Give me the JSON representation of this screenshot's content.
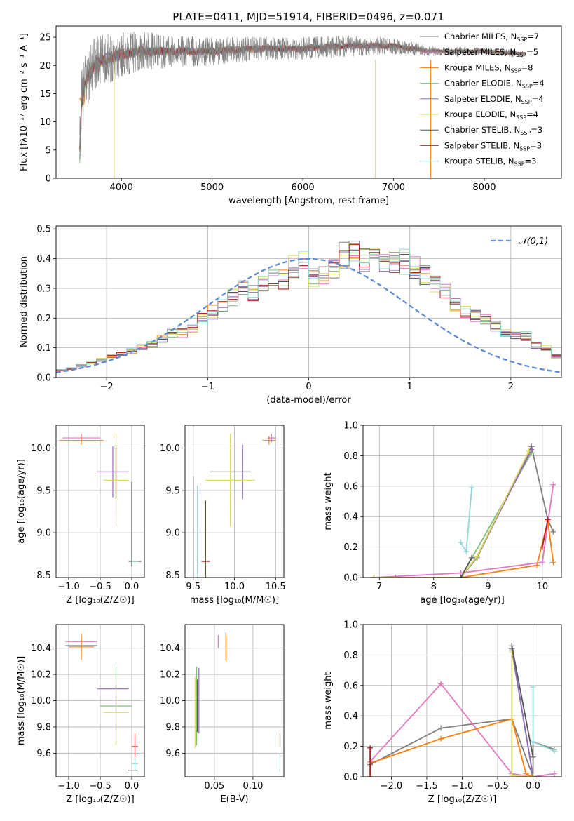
{
  "title": "PLATE=0411, MJD=51914, FIBERID=0496, z=0.071",
  "colors": [
    "#7f7f7f",
    "#e377c2",
    "#ff7f0e",
    "#7fbf7f",
    "#9467bd",
    "#dbdb5c",
    "#555555",
    "#b22222",
    "#8fd8d8"
  ],
  "chart_data": [
    {
      "id": "spectrum",
      "type": "line",
      "xlabel": "wavelength [Angstrom, rest frame]",
      "ylabel": "Flux [fλ10⁻¹⁷ erg cm⁻² s⁻¹ A⁻¹]",
      "xlim": [
        3280,
        8850
      ],
      "ylim": [
        0,
        27
      ],
      "xticks": [
        4000,
        5000,
        6000,
        7000,
        8000
      ],
      "yticks": [
        0,
        5,
        10,
        15,
        20,
        25
      ],
      "grid": false,
      "legend_position": "top-right",
      "series": [
        {
          "name": "Chabrier MILES, NSSP=7",
          "label": "Chabrier MILES, N",
          "sub": "SSP",
          "suffix": "=7"
        },
        {
          "name": "Salpeter MILES, NSSP=5",
          "label": "Salpeter MILES, N",
          "sub": "SSP",
          "suffix": "=5"
        },
        {
          "name": "Kroupa MILES, NSSP=8",
          "label": "Kroupa MILES, N",
          "sub": "SSP",
          "suffix": "=8"
        },
        {
          "name": "Chabrier ELODIE, NSSP=4",
          "label": "Chabrier ELODIE, N",
          "sub": "SSP",
          "suffix": "=4"
        },
        {
          "name": "Salpeter ELODIE, NSSP=4",
          "label": "Salpeter ELODIE, N",
          "sub": "SSP",
          "suffix": "=4"
        },
        {
          "name": "Kroupa ELODIE, NSSP=4",
          "label": "Kroupa ELODIE, N",
          "sub": "SSP",
          "suffix": "=4"
        },
        {
          "name": "Chabrier STELIB, NSSP=3",
          "label": "Chabrier STELIB, N",
          "sub": "SSP",
          "suffix": "=3"
        },
        {
          "name": "Salpeter STELIB, NSSP=3",
          "label": "Salpeter STELIB, N",
          "sub": "SSP",
          "suffix": "=3"
        },
        {
          "name": "Kroupa STELIB, NSSP=3",
          "label": "Kroupa STELIB, N",
          "sub": "SSP",
          "suffix": "=3"
        }
      ],
      "observed_spectrum": {
        "x_range": [
          3540,
          8460
        ],
        "envelope": [
          [
            3540,
            4
          ],
          [
            3560,
            13
          ],
          [
            3600,
            17
          ],
          [
            3700,
            20
          ],
          [
            3800,
            21
          ],
          [
            3900,
            21.5
          ],
          [
            4000,
            22
          ],
          [
            4200,
            22.5
          ],
          [
            4500,
            22.5
          ],
          [
            4800,
            22.5
          ],
          [
            5000,
            22.5
          ],
          [
            5500,
            23
          ],
          [
            6000,
            23
          ],
          [
            6500,
            23.5
          ],
          [
            7000,
            23.5
          ],
          [
            7400,
            22.5
          ],
          [
            7600,
            22.5
          ],
          [
            8000,
            22.5
          ],
          [
            8460,
            22
          ]
        ],
        "noise": [
          [
            3540,
            6
          ],
          [
            3700,
            5
          ],
          [
            4000,
            4
          ],
          [
            4500,
            3
          ],
          [
            5000,
            2.5
          ],
          [
            5800,
            2
          ],
          [
            6500,
            2
          ],
          [
            7000,
            1.5
          ],
          [
            7500,
            0.8
          ],
          [
            8460,
            0.6
          ]
        ]
      },
      "model_dips": [
        {
          "x": 3920,
          "y": 0,
          "series": 5
        },
        {
          "x": 6800,
          "y": 0,
          "series": 5
        },
        {
          "x": 7410,
          "y": 0,
          "series": 2
        }
      ]
    },
    {
      "id": "residuals",
      "type": "step",
      "xlabel": "(data-model)/error",
      "ylabel": "Normed distribution",
      "xlim": [
        -2.5,
        2.5
      ],
      "ylim": [
        0,
        0.51
      ],
      "xticks": [
        -2,
        -1,
        0,
        1,
        2
      ],
      "yticks": [
        0.0,
        0.1,
        0.2,
        0.3,
        0.4,
        0.5
      ],
      "grid": true,
      "legend_position": "top-right",
      "gaussian_label": "𝒩(0,1)",
      "bin_width": 0.1,
      "bin_start": -2.5,
      "base_values": [
        0.025,
        0.03,
        0.04,
        0.05,
        0.06,
        0.07,
        0.08,
        0.09,
        0.1,
        0.11,
        0.13,
        0.15,
        0.15,
        0.16,
        0.2,
        0.22,
        0.24,
        0.27,
        0.3,
        0.28,
        0.32,
        0.34,
        0.33,
        0.37,
        0.39,
        0.34,
        0.34,
        0.37,
        0.41,
        0.43,
        0.4,
        0.41,
        0.39,
        0.38,
        0.39,
        0.37,
        0.34,
        0.31,
        0.29,
        0.25,
        0.22,
        0.21,
        0.2,
        0.17,
        0.15,
        0.14,
        0.14,
        0.11,
        0.1,
        0.07,
        0.065,
        0.06,
        0.05,
        0.045,
        0.04,
        0.04,
        0.035
      ]
    },
    {
      "id": "age-vs-Z",
      "type": "errorbar",
      "xlabel": "Z [log₁₀(Z/Z☉)]",
      "ylabel": "age  [log₁₀(age/yr)]",
      "xlim": [
        -1.2,
        0.2
      ],
      "ylim": [
        8.47,
        10.27
      ],
      "xticks": [
        -1.0,
        -0.5,
        0.0
      ],
      "yticks": [
        8.5,
        9.0,
        9.5,
        10.0
      ],
      "grid": true,
      "points": [
        {
          "s": 0,
          "x": 0.05,
          "y": 8.66,
          "xe": 0.1,
          "ye": 0.0
        },
        {
          "s": 1,
          "x": -0.8,
          "y": 10.12,
          "xe": 0.3,
          "ye": 0.05
        },
        {
          "s": 2,
          "x": -0.8,
          "y": 10.09,
          "xe": 0.35,
          "ye": 0.05
        },
        {
          "s": 3,
          "x": -0.25,
          "y": 9.62,
          "xe": 0.0,
          "ye": 0.4
        },
        {
          "s": 4,
          "x": -0.3,
          "y": 9.72,
          "xe": 0.25,
          "ye": 0.3
        },
        {
          "s": 5,
          "x": -0.25,
          "y": 9.62,
          "xe": 0.2,
          "ye": 0.55
        },
        {
          "s": 6,
          "x": 0.0,
          "y": 9.1,
          "xe": 0.0,
          "ye": 0.5
        },
        {
          "s": 7,
          "x": -0.25,
          "y": 9.72,
          "xe": 0.0,
          "ye": 0.32
        },
        {
          "s": 8,
          "x": 0.05,
          "y": 8.66,
          "xe": 0.05,
          "ye": 0.0
        }
      ]
    },
    {
      "id": "age-vs-mass",
      "type": "errorbar",
      "xlabel": "mass [log₁₀(M/M☉)]",
      "ylabel": "",
      "xlim": [
        9.4,
        10.6
      ],
      "ylim": [
        8.47,
        10.27
      ],
      "xticks": [
        9.5,
        10.0,
        10.5
      ],
      "yticks": [
        8.5,
        9.0,
        9.5,
        10.0
      ],
      "grid": true,
      "points": [
        {
          "s": 0,
          "x": 9.95,
          "y": 9.72,
          "xe": 0.25,
          "ye": 0.32
        },
        {
          "s": 1,
          "x": 10.45,
          "y": 10.12,
          "xe": 0.05,
          "ye": 0.05
        },
        {
          "s": 2,
          "x": 10.42,
          "y": 10.09,
          "xe": 0.08,
          "ye": 0.05
        },
        {
          "s": 3,
          "x": 9.95,
          "y": 9.72,
          "xe": 0.0,
          "ye": 0.3
        },
        {
          "s": 4,
          "x": 10.1,
          "y": 9.72,
          "xe": 0.0,
          "ye": 0.32
        },
        {
          "s": 5,
          "x": 9.95,
          "y": 9.62,
          "xe": 0.3,
          "ye": 0.55
        },
        {
          "s": 6,
          "x": 9.5,
          "y": 8.66,
          "xe": 0.0,
          "ye": 1.0
        },
        {
          "s": 7,
          "x": 9.65,
          "y": 8.66,
          "xe": 0.05,
          "ye": 0.72
        },
        {
          "s": 8,
          "x": 9.55,
          "y": 8.66,
          "xe": 0.0,
          "ye": 0.9
        }
      ]
    },
    {
      "id": "massweight-vs-age",
      "type": "line",
      "xlabel": "age  [log₁₀(age/yr)]",
      "ylabel": "mass weight",
      "xlim": [
        6.7,
        10.35
      ],
      "ylim": [
        0,
        1
      ],
      "xticks": [
        7,
        8,
        9,
        10
      ],
      "yticks": [
        0.0,
        0.2,
        0.4,
        0.6,
        0.8,
        1.0
      ],
      "grid": true,
      "series": [
        {
          "s": 0,
          "x": [
            6.9,
            7.3,
            8.5,
            8.8,
            9.8,
            10.1,
            10.2
          ],
          "y": [
            0.0,
            0.0,
            0.0,
            0.13,
            0.86,
            0.38,
            0.3
          ]
        },
        {
          "s": 1,
          "x": [
            6.9,
            8.5,
            10.0,
            10.2
          ],
          "y": [
            0.0,
            0.03,
            0.1,
            0.61
          ]
        },
        {
          "s": 2,
          "x": [
            6.9,
            8.5,
            9.9,
            10.1,
            10.2
          ],
          "y": [
            0.0,
            0.0,
            0.08,
            0.37,
            0.1
          ]
        },
        {
          "s": 3,
          "x": [
            6.9,
            8.5,
            9.8
          ],
          "y": [
            0.0,
            0.0,
            0.82
          ]
        },
        {
          "s": 4,
          "x": [
            6.9,
            8.5,
            8.8,
            9.8
          ],
          "y": [
            0.0,
            0.0,
            0.14,
            0.84
          ]
        },
        {
          "s": 5,
          "x": [
            6.9,
            8.5,
            8.8,
            9.75
          ],
          "y": [
            0.0,
            0.0,
            0.14,
            0.83
          ]
        },
        {
          "s": 6,
          "x": [
            8.5,
            8.7
          ],
          "y": [
            0.0,
            0.13
          ]
        },
        {
          "s": 7,
          "x": [
            10.0,
            10.1
          ],
          "y": [
            0.2,
            0.38
          ]
        },
        {
          "s": 8,
          "x": [
            8.5,
            8.6,
            8.7
          ],
          "y": [
            0.23,
            0.17,
            0.59
          ]
        }
      ]
    },
    {
      "id": "mass-vs-Z",
      "type": "errorbar",
      "xlabel": "Z [log₁₀(Z/Z☉)]",
      "ylabel": "mass [log₁₀(M/M☉)]",
      "xlim": [
        -1.2,
        0.2
      ],
      "ylim": [
        9.42,
        10.58
      ],
      "xticks": [
        -1.0,
        -0.5,
        0.0
      ],
      "yticks": [
        9.6,
        9.8,
        10.0,
        10.2,
        10.4
      ],
      "grid": true,
      "points": [
        {
          "s": 0,
          "x": -0.8,
          "y": 10.42,
          "xe": 0.25,
          "ye": 0.05
        },
        {
          "s": 1,
          "x": -0.8,
          "y": 10.45,
          "xe": 0.25,
          "ye": 0.05
        },
        {
          "s": 2,
          "x": -0.8,
          "y": 10.41,
          "xe": 0.2,
          "ye": 0.1
        },
        {
          "s": 3,
          "x": -0.25,
          "y": 9.96,
          "xe": 0.25,
          "ye": 0.3
        },
        {
          "s": 4,
          "x": -0.3,
          "y": 10.09,
          "xe": 0.25,
          "ye": 0.0
        },
        {
          "s": 5,
          "x": -0.25,
          "y": 9.91,
          "xe": 0.2,
          "ye": 0.25
        },
        {
          "s": 6,
          "x": 0.02,
          "y": 9.47,
          "xe": 0.08,
          "ye": 0.0
        },
        {
          "s": 7,
          "x": 0.05,
          "y": 9.65,
          "xe": 0.05,
          "ye": 0.1
        },
        {
          "s": 8,
          "x": 0.05,
          "y": 9.52,
          "xe": 0.05,
          "ye": 0.05
        }
      ]
    },
    {
      "id": "mass-vs-EBV",
      "type": "errorbar",
      "xlabel": "E(B-V)",
      "ylabel": "",
      "xlim": [
        0.012,
        0.14
      ],
      "ylim": [
        9.42,
        10.58
      ],
      "xticks": [
        0.05,
        0.1
      ],
      "yticks": [
        9.6,
        9.8,
        10.0,
        10.2,
        10.4
      ],
      "grid": true,
      "points": [
        {
          "s": 0,
          "x": 0.065,
          "y": 10.42,
          "xe": 0.0,
          "ye": 0.1
        },
        {
          "s": 1,
          "x": 0.055,
          "y": 10.45,
          "xe": 0.0,
          "ye": 0.05
        },
        {
          "s": 2,
          "x": 0.065,
          "y": 10.4,
          "xe": 0.0,
          "ye": 0.1
        },
        {
          "s": 3,
          "x": 0.027,
          "y": 9.96,
          "xe": 0.0,
          "ye": 0.3
        },
        {
          "s": 4,
          "x": 0.03,
          "y": 10.0,
          "xe": 0.0,
          "ye": 0.25
        },
        {
          "s": 5,
          "x": 0.025,
          "y": 9.91,
          "xe": 0.0,
          "ye": 0.27
        },
        {
          "s": 6,
          "x": 0.028,
          "y": 9.96,
          "xe": 0.0,
          "ye": 0.2
        },
        {
          "s": 7,
          "x": 0.135,
          "y": 9.7,
          "xe": 0.0,
          "ye": 0.05
        },
        {
          "s": 8,
          "x": 0.135,
          "y": 9.53,
          "xe": 0.0,
          "ye": 0.07
        }
      ]
    },
    {
      "id": "massweight-vs-Z",
      "type": "line",
      "xlabel": "Z [log₁₀(Z/Z☉)]",
      "ylabel": "mass weight",
      "xlim": [
        -2.4,
        0.4
      ],
      "ylim": [
        0,
        1
      ],
      "xticks": [
        -2.0,
        -1.5,
        -1.0,
        -0.5,
        0.0
      ],
      "yticks": [
        0.0,
        0.2,
        0.4,
        0.6,
        0.8,
        1.0
      ],
      "grid": true,
      "series": [
        {
          "s": 0,
          "x": [
            -2.3,
            -1.3,
            -0.3,
            0.0,
            0.0,
            0.3
          ],
          "y": [
            0.08,
            0.32,
            0.38,
            0.0,
            0.23,
            0.18
          ]
        },
        {
          "s": 1,
          "x": [
            -2.3,
            -1.3,
            -0.3,
            0.0,
            0.3
          ],
          "y": [
            0.1,
            0.61,
            0.02,
            0.0,
            0.02
          ]
        },
        {
          "s": 2,
          "x": [
            -2.3,
            -1.3,
            -0.3,
            -0.1,
            0.0
          ],
          "y": [
            0.09,
            0.25,
            0.38,
            0.02,
            0.0
          ]
        },
        {
          "s": 3,
          "x": [
            -0.3,
            0.0
          ],
          "y": [
            0.83,
            0.0
          ]
        },
        {
          "s": 4,
          "x": [
            -0.3,
            0.0
          ],
          "y": [
            0.84,
            0.0
          ]
        },
        {
          "s": 5,
          "x": [
            -0.3,
            -0.3,
            0.0
          ],
          "y": [
            0.82,
            0.01,
            0.0
          ]
        },
        {
          "s": 6,
          "x": [
            -0.3,
            0.0
          ],
          "y": [
            0.86,
            0.13
          ]
        },
        {
          "s": 7,
          "x": [
            -2.3,
            -2.3
          ],
          "y": [
            0.0,
            0.19
          ]
        },
        {
          "s": 8,
          "x": [
            0.0,
            0.0,
            0.3
          ],
          "y": [
            0.59,
            0.23,
            0.17
          ]
        }
      ]
    }
  ]
}
